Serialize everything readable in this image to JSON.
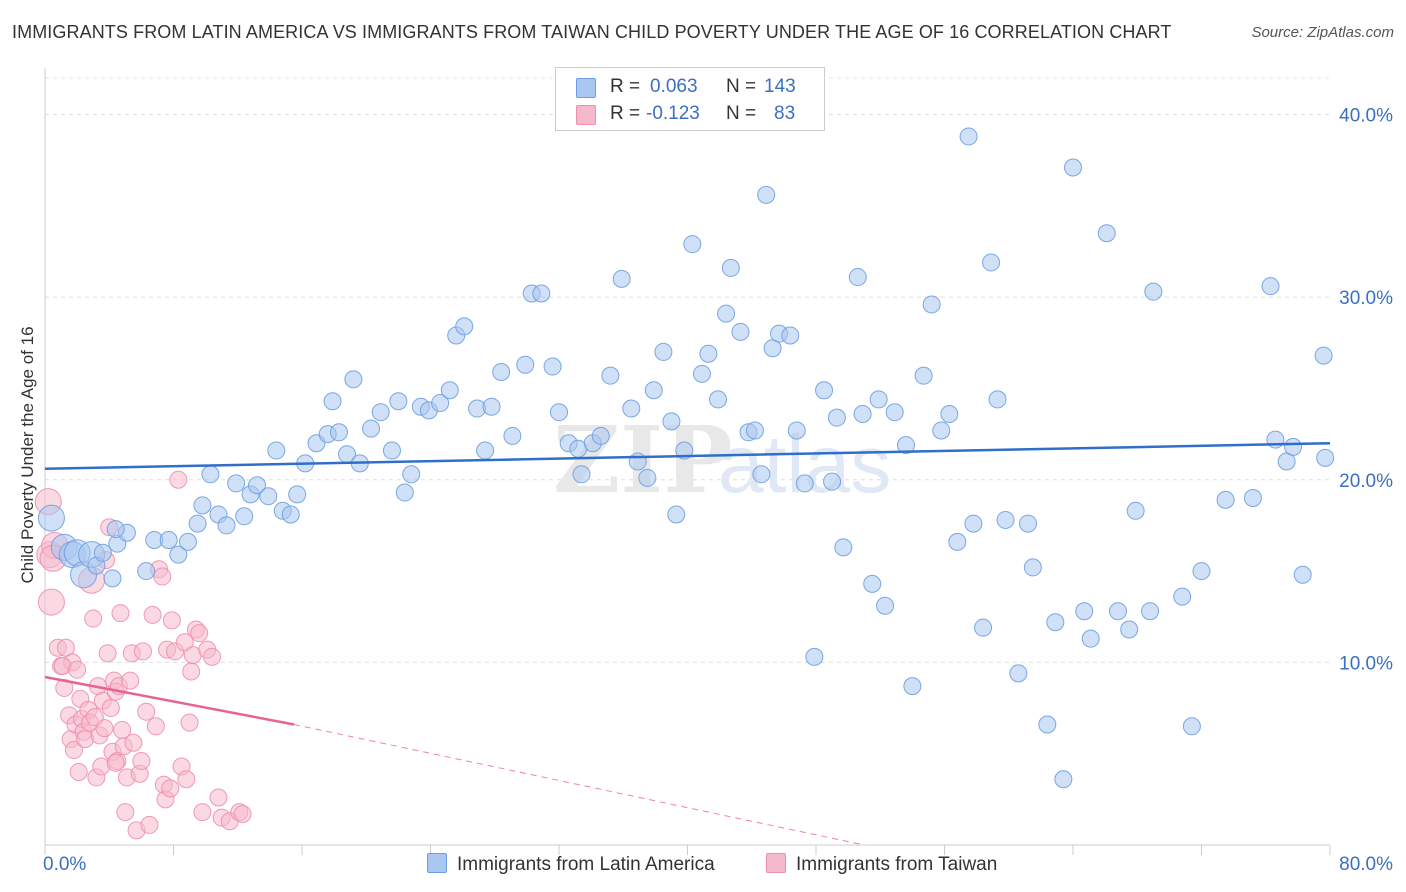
{
  "title": "IMMIGRANTS FROM LATIN AMERICA VS IMMIGRANTS FROM TAIWAN CHILD POVERTY UNDER THE AGE OF 16 CORRELATION CHART",
  "source": "Source: ZipAtlas.com",
  "legend": {
    "r_label": "R =",
    "n_label": "N =",
    "series1": {
      "r": "0.063",
      "n": "143"
    },
    "series2": {
      "r": "-0.123",
      "n": "83"
    }
  },
  "watermark": {
    "zip": "ZIP",
    "atlas": "atlas"
  },
  "chart_data": {
    "type": "scatter",
    "title": "IMMIGRANTS FROM LATIN AMERICA VS IMMIGRANTS FROM TAIWAN CHILD POVERTY UNDER THE AGE OF 16 CORRELATION CHART",
    "xlabel": "",
    "ylabel": "Child Poverty Under the Age of 16",
    "xlim": [
      0,
      80
    ],
    "ylim": [
      0,
      42
    ],
    "x_tick_labels": [
      "0.0%",
      "80.0%"
    ],
    "y_ticks": [
      10,
      20,
      30,
      40
    ],
    "y_tick_labels": [
      "10.0%",
      "20.0%",
      "30.0%",
      "40.0%"
    ],
    "grid": true,
    "legend_position": "bottom",
    "colors": {
      "series1_fill": "#a9c7f0",
      "series1_stroke": "#6d9ee0",
      "series1_line": "#2f6fc9",
      "series2_fill": "#f6b9cc",
      "series2_stroke": "#ee8fae",
      "series2_line": "#e8648f",
      "axis_label": "#3a6fc4"
    },
    "series": [
      {
        "name": "Immigrants from Latin America",
        "trend": {
          "x": [
            0,
            80
          ],
          "y": [
            20.6,
            22.0
          ]
        },
        "points": [
          [
            0.4,
            17.9
          ],
          [
            1.2,
            16.3
          ],
          [
            1.7,
            15.9
          ],
          [
            2.0,
            16.0
          ],
          [
            2.4,
            14.8
          ],
          [
            2.9,
            15.9
          ],
          [
            3.2,
            15.3
          ],
          [
            3.6,
            16.0
          ],
          [
            4.2,
            14.6
          ],
          [
            4.5,
            16.5
          ],
          [
            5.1,
            17.1
          ],
          [
            6.3,
            15.0
          ],
          [
            6.8,
            16.7
          ],
          [
            7.7,
            16.7
          ],
          [
            8.3,
            15.9
          ],
          [
            8.9,
            16.6
          ],
          [
            9.5,
            17.6
          ],
          [
            9.8,
            18.6
          ],
          [
            10.3,
            20.3
          ],
          [
            10.8,
            18.1
          ],
          [
            11.3,
            17.5
          ],
          [
            11.9,
            19.8
          ],
          [
            12.4,
            18.0
          ],
          [
            12.8,
            19.2
          ],
          [
            13.2,
            19.7
          ],
          [
            13.9,
            19.1
          ],
          [
            14.4,
            21.6
          ],
          [
            14.8,
            18.3
          ],
          [
            15.3,
            18.1
          ],
          [
            15.7,
            19.2
          ],
          [
            16.2,
            20.9
          ],
          [
            16.9,
            22.0
          ],
          [
            17.6,
            22.5
          ],
          [
            17.9,
            24.3
          ],
          [
            18.3,
            22.6
          ],
          [
            18.8,
            21.4
          ],
          [
            19.2,
            25.5
          ],
          [
            19.6,
            20.9
          ],
          [
            20.3,
            22.8
          ],
          [
            20.9,
            23.7
          ],
          [
            21.6,
            21.6
          ],
          [
            22.0,
            24.3
          ],
          [
            22.4,
            19.3
          ],
          [
            22.8,
            20.3
          ],
          [
            23.4,
            24.0
          ],
          [
            23.9,
            23.8
          ],
          [
            24.6,
            24.2
          ],
          [
            25.2,
            24.9
          ],
          [
            25.6,
            27.9
          ],
          [
            26.1,
            28.4
          ],
          [
            26.9,
            23.9
          ],
          [
            27.4,
            21.6
          ],
          [
            27.8,
            24.0
          ],
          [
            28.4,
            25.9
          ],
          [
            29.1,
            22.4
          ],
          [
            29.9,
            26.3
          ],
          [
            30.3,
            30.2
          ],
          [
            30.9,
            30.2
          ],
          [
            31.6,
            26.2
          ],
          [
            32.0,
            23.7
          ],
          [
            32.6,
            22.0
          ],
          [
            33.2,
            21.7
          ],
          [
            33.4,
            20.3
          ],
          [
            34.1,
            22.0
          ],
          [
            34.6,
            22.4
          ],
          [
            35.2,
            25.7
          ],
          [
            35.9,
            31.0
          ],
          [
            36.5,
            23.9
          ],
          [
            36.9,
            21.0
          ],
          [
            37.5,
            20.1
          ],
          [
            37.9,
            24.9
          ],
          [
            38.5,
            27.0
          ],
          [
            39.0,
            23.2
          ],
          [
            39.3,
            18.1
          ],
          [
            39.8,
            21.6
          ],
          [
            40.3,
            32.9
          ],
          [
            40.9,
            25.8
          ],
          [
            41.3,
            26.9
          ],
          [
            41.9,
            24.4
          ],
          [
            42.4,
            29.1
          ],
          [
            42.7,
            31.6
          ],
          [
            43.3,
            28.1
          ],
          [
            43.8,
            22.6
          ],
          [
            44.2,
            22.7
          ],
          [
            44.6,
            20.3
          ],
          [
            44.9,
            35.6
          ],
          [
            45.3,
            27.2
          ],
          [
            45.7,
            28.0
          ],
          [
            46.4,
            27.9
          ],
          [
            46.8,
            22.7
          ],
          [
            47.3,
            19.8
          ],
          [
            47.9,
            10.3
          ],
          [
            48.5,
            24.9
          ],
          [
            49.0,
            19.9
          ],
          [
            49.3,
            23.4
          ],
          [
            49.7,
            16.3
          ],
          [
            50.6,
            31.1
          ],
          [
            50.9,
            23.6
          ],
          [
            51.5,
            14.3
          ],
          [
            51.9,
            24.4
          ],
          [
            52.3,
            13.1
          ],
          [
            52.9,
            23.7
          ],
          [
            53.6,
            21.9
          ],
          [
            54.0,
            8.7
          ],
          [
            54.7,
            25.7
          ],
          [
            55.2,
            29.6
          ],
          [
            55.8,
            22.7
          ],
          [
            56.3,
            23.6
          ],
          [
            56.8,
            16.6
          ],
          [
            57.5,
            38.8
          ],
          [
            57.8,
            17.6
          ],
          [
            58.4,
            11.9
          ],
          [
            58.9,
            31.9
          ],
          [
            59.3,
            24.4
          ],
          [
            59.8,
            17.8
          ],
          [
            60.6,
            9.4
          ],
          [
            61.2,
            17.6
          ],
          [
            61.5,
            15.2
          ],
          [
            62.4,
            6.6
          ],
          [
            62.9,
            12.2
          ],
          [
            63.4,
            3.6
          ],
          [
            64.0,
            37.1
          ],
          [
            64.7,
            12.8
          ],
          [
            65.1,
            11.3
          ],
          [
            66.1,
            33.5
          ],
          [
            66.8,
            12.8
          ],
          [
            67.5,
            11.8
          ],
          [
            67.9,
            18.3
          ],
          [
            68.8,
            12.8
          ],
          [
            69.0,
            30.3
          ],
          [
            70.8,
            13.6
          ],
          [
            71.4,
            6.5
          ],
          [
            72.0,
            15.0
          ],
          [
            73.5,
            18.9
          ],
          [
            75.2,
            19.0
          ],
          [
            76.3,
            30.6
          ],
          [
            76.6,
            22.2
          ],
          [
            77.3,
            21.0
          ],
          [
            77.7,
            21.8
          ],
          [
            78.3,
            14.8
          ],
          [
            79.6,
            26.8
          ],
          [
            79.7,
            21.2
          ],
          [
            4.4,
            17.3
          ]
        ]
      },
      {
        "name": "Immigrants from Taiwan",
        "trend": {
          "x": [
            0,
            15.5
          ],
          "y": [
            9.2,
            6.6
          ]
        },
        "trend_extension": {
          "x": [
            15.5,
            51
          ],
          "y": [
            6.6,
            0
          ]
        },
        "points": [
          [
            0.2,
            18.8
          ],
          [
            0.3,
            15.9
          ],
          [
            0.4,
            13.3
          ],
          [
            0.6,
            16.4
          ],
          [
            0.8,
            10.8
          ],
          [
            1.0,
            9.8
          ],
          [
            1.2,
            8.6
          ],
          [
            1.3,
            10.8
          ],
          [
            1.5,
            7.1
          ],
          [
            1.6,
            5.8
          ],
          [
            1.7,
            10.0
          ],
          [
            1.8,
            5.2
          ],
          [
            1.9,
            6.6
          ],
          [
            2.1,
            4.0
          ],
          [
            2.2,
            8.0
          ],
          [
            2.3,
            6.9
          ],
          [
            2.4,
            6.2
          ],
          [
            2.5,
            5.8
          ],
          [
            2.7,
            7.4
          ],
          [
            2.8,
            6.7
          ],
          [
            2.9,
            14.5
          ],
          [
            3.0,
            12.4
          ],
          [
            3.2,
            3.7
          ],
          [
            3.3,
            8.7
          ],
          [
            3.4,
            6.0
          ],
          [
            3.5,
            4.3
          ],
          [
            3.6,
            7.9
          ],
          [
            3.7,
            6.4
          ],
          [
            3.8,
            15.6
          ],
          [
            3.9,
            10.5
          ],
          [
            4.0,
            17.4
          ],
          [
            4.1,
            7.5
          ],
          [
            4.2,
            5.1
          ],
          [
            4.3,
            9.0
          ],
          [
            4.4,
            8.4
          ],
          [
            4.5,
            4.6
          ],
          [
            4.6,
            8.7
          ],
          [
            4.7,
            12.7
          ],
          [
            4.8,
            6.3
          ],
          [
            4.9,
            5.4
          ],
          [
            5.0,
            1.8
          ],
          [
            5.1,
            3.7
          ],
          [
            5.3,
            9.0
          ],
          [
            5.4,
            10.5
          ],
          [
            5.5,
            5.6
          ],
          [
            5.7,
            0.8
          ],
          [
            5.9,
            3.9
          ],
          [
            6.0,
            4.6
          ],
          [
            6.3,
            7.3
          ],
          [
            6.5,
            1.1
          ],
          [
            6.7,
            12.6
          ],
          [
            6.9,
            6.5
          ],
          [
            7.1,
            15.1
          ],
          [
            7.3,
            14.7
          ],
          [
            7.4,
            3.3
          ],
          [
            7.5,
            2.5
          ],
          [
            7.6,
            10.7
          ],
          [
            7.8,
            3.1
          ],
          [
            7.9,
            12.3
          ],
          [
            8.1,
            10.6
          ],
          [
            8.3,
            20.0
          ],
          [
            8.5,
            4.3
          ],
          [
            8.7,
            11.1
          ],
          [
            9.0,
            6.7
          ],
          [
            9.1,
            9.5
          ],
          [
            9.2,
            10.4
          ],
          [
            9.4,
            11.8
          ],
          [
            9.6,
            11.6
          ],
          [
            9.8,
            1.8
          ],
          [
            10.1,
            10.7
          ],
          [
            10.4,
            10.3
          ],
          [
            10.8,
            2.6
          ],
          [
            11.0,
            1.5
          ],
          [
            11.5,
            1.3
          ],
          [
            12.1,
            1.8
          ],
          [
            12.3,
            1.7
          ],
          [
            0.5,
            15.7
          ],
          [
            1.1,
            9.8
          ],
          [
            2.0,
            9.6
          ],
          [
            3.1,
            7.0
          ],
          [
            4.4,
            4.5
          ],
          [
            6.1,
            10.6
          ],
          [
            8.8,
            3.6
          ]
        ]
      }
    ]
  }
}
